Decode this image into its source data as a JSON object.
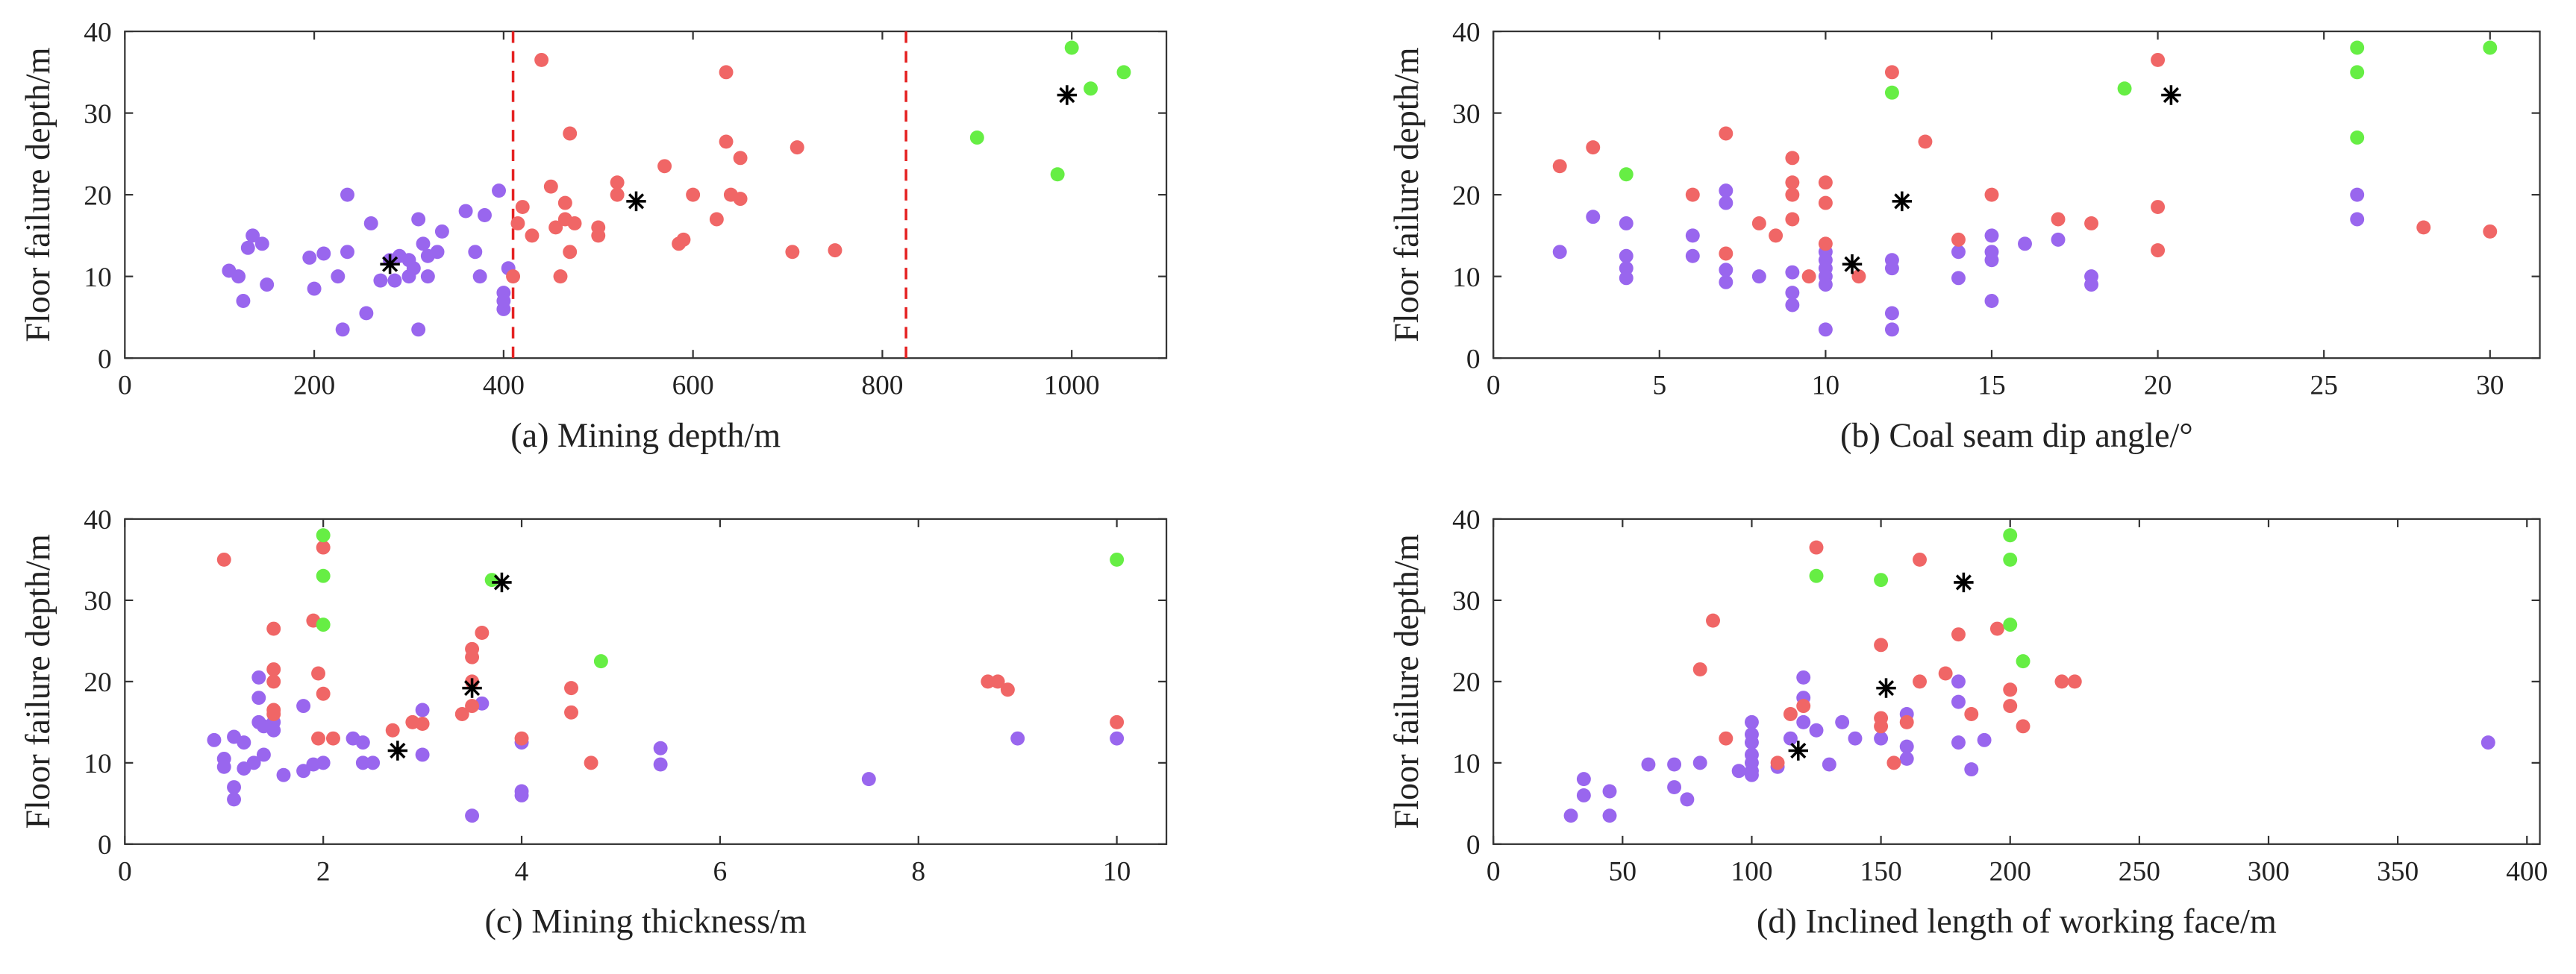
{
  "chart_data": [
    {
      "type": "scatter",
      "xlabel": "(a) Mining depth/m",
      "ylabel": "Floor failure depth/m",
      "xlim": [
        0,
        1100
      ],
      "ylim": [
        0,
        40
      ],
      "xticks": [
        0,
        200,
        400,
        600,
        800,
        1000
      ],
      "yticks": [
        0,
        10,
        20,
        30,
        40
      ],
      "vlines": [
        410,
        825
      ],
      "vline_color": "#e52222",
      "series": [
        {
          "color": "#9966ee",
          "marker": "dot",
          "x": [
            110,
            120,
            125,
            130,
            135,
            145,
            150,
            195,
            200,
            210,
            225,
            230,
            235,
            235,
            255,
            260,
            270,
            280,
            285,
            290,
            300,
            300,
            305,
            310,
            310,
            315,
            320,
            320,
            330,
            335,
            360,
            370,
            375,
            380,
            395,
            400,
            400,
            400,
            405
          ],
          "y": [
            10.7,
            10,
            7,
            13.5,
            15,
            14,
            9,
            12.3,
            8.5,
            12.8,
            10,
            3.5,
            13,
            20,
            5.5,
            16.5,
            9.5,
            12,
            9.5,
            12.5,
            12,
            10,
            11,
            17,
            3.5,
            14,
            10,
            12.5,
            13,
            15.5,
            18,
            13,
            10,
            17.5,
            20.5,
            8,
            6,
            7,
            11
          ]
        },
        {
          "color": "#f06666",
          "marker": "dot",
          "x": [
            410,
            415,
            420,
            430,
            440,
            450,
            455,
            460,
            465,
            465,
            470,
            470,
            475,
            500,
            500,
            520,
            520,
            570,
            585,
            590,
            600,
            625,
            635,
            635,
            640,
            650,
            650,
            705,
            710,
            750
          ],
          "y": [
            10,
            16.5,
            18.5,
            15,
            36.5,
            21,
            16,
            10,
            17,
            19,
            27.5,
            13,
            16.5,
            15,
            16,
            21.5,
            20,
            23.5,
            14,
            14.5,
            20,
            17,
            35,
            26.5,
            20,
            19.5,
            24.5,
            13,
            25.8,
            13.2
          ]
        },
        {
          "color": "#66ee44",
          "marker": "dot",
          "x": [
            900,
            985,
            1000,
            1020,
            1055
          ],
          "y": [
            27,
            22.5,
            38,
            33,
            35
          ]
        },
        {
          "color": "#000000",
          "marker": "asterisk",
          "x": [
            280,
            540,
            995
          ],
          "y": [
            11.5,
            19.2,
            32.2
          ]
        }
      ]
    },
    {
      "type": "scatter",
      "xlabel": "(b) Coal seam dip angle/°",
      "ylabel": "Floor failure depth/m",
      "xlim": [
        0,
        31.5
      ],
      "ylim": [
        0,
        40
      ],
      "xticks": [
        0,
        5,
        10,
        15,
        20,
        25,
        30
      ],
      "yticks": [
        0,
        10,
        20,
        30,
        40
      ],
      "series": [
        {
          "color": "#9966ee",
          "marker": "dot",
          "x": [
            2,
            3,
            4,
            4,
            4,
            4,
            6,
            6,
            7,
            7,
            7,
            7,
            8,
            9,
            9,
            9,
            10,
            10,
            10,
            10,
            10,
            10,
            12,
            12,
            12,
            12,
            14,
            14,
            15,
            15,
            15,
            15,
            16,
            17,
            18,
            18,
            26,
            26
          ],
          "y": [
            13,
            17.3,
            16.5,
            12.5,
            11,
            9.8,
            15,
            12.5,
            20.5,
            19,
            10.8,
            9.3,
            10,
            10.5,
            8,
            6.5,
            13,
            12,
            11,
            10,
            9,
            3.5,
            12,
            11,
            5.5,
            3.5,
            13,
            9.8,
            15,
            13,
            12,
            7,
            14,
            14.5,
            10,
            9,
            20,
            17
          ]
        },
        {
          "color": "#f06666",
          "marker": "dot",
          "x": [
            2,
            3,
            6,
            7,
            7,
            8,
            8.5,
            9,
            9,
            9,
            9,
            9.5,
            10,
            10,
            10,
            11,
            12,
            13,
            14,
            15,
            17,
            18,
            20,
            20,
            20,
            28,
            30
          ],
          "y": [
            23.5,
            25.8,
            20,
            27.5,
            12.8,
            16.5,
            15,
            24.5,
            21.5,
            20,
            17,
            10,
            21.5,
            19,
            14,
            10,
            35,
            26.5,
            14.5,
            20,
            17,
            16.5,
            36.5,
            18.5,
            13.2,
            16,
            15.5
          ]
        },
        {
          "color": "#66ee44",
          "marker": "dot",
          "x": [
            4,
            12,
            19,
            26,
            26,
            26,
            30
          ],
          "y": [
            22.5,
            32.5,
            33,
            38,
            35,
            27,
            38
          ]
        },
        {
          "color": "#000000",
          "marker": "asterisk",
          "x": [
            10.8,
            12.3,
            20.4
          ],
          "y": [
            11.5,
            19.2,
            32.2
          ]
        }
      ]
    },
    {
      "type": "scatter",
      "xlabel": "(c) Mining thickness/m",
      "ylabel": "Floor failure depth/m",
      "xlim": [
        0,
        10.5
      ],
      "ylim": [
        0,
        40
      ],
      "xticks": [
        0,
        2,
        4,
        6,
        8,
        10
      ],
      "yticks": [
        0,
        10,
        20,
        30,
        40
      ],
      "series": [
        {
          "color": "#9966ee",
          "marker": "dot",
          "x": [
            0.9,
            1,
            1,
            1.1,
            1.1,
            1.1,
            1.2,
            1.2,
            1.3,
            1.35,
            1.35,
            1.35,
            1.4,
            1.4,
            1.5,
            1.5,
            1.6,
            1.8,
            1.8,
            1.9,
            2.0,
            2.3,
            2.4,
            2.4,
            2.5,
            3,
            3,
            3.5,
            3.6,
            4,
            4,
            4,
            5.4,
            5.4,
            7.5,
            9,
            10
          ],
          "y": [
            12.8,
            10.5,
            9.5,
            13.2,
            7,
            5.5,
            12.5,
            9.3,
            10,
            20.5,
            18,
            15,
            14.5,
            11,
            15,
            14,
            8.5,
            17,
            9,
            9.8,
            10,
            13,
            12.5,
            10,
            10,
            16.5,
            11,
            3.5,
            17.3,
            12.5,
            6.5,
            6,
            11.8,
            9.8,
            8,
            13,
            13
          ]
        },
        {
          "color": "#f06666",
          "marker": "dot",
          "x": [
            1,
            1.5,
            1.5,
            1.5,
            1.5,
            1.5,
            1.9,
            1.95,
            2,
            2,
            1.95,
            2.1,
            2.7,
            2.9,
            3,
            3.4,
            3.5,
            3.5,
            3.5,
            3.6,
            3.5,
            4,
            4.5,
            4.5,
            4.7,
            8.7,
            8.8,
            8.9,
            10
          ],
          "y": [
            35,
            26.5,
            21.5,
            20,
            16.5,
            16,
            27.5,
            21,
            36.5,
            18.5,
            13,
            13,
            14,
            15,
            14.8,
            16,
            17,
            24,
            23,
            26,
            20,
            13,
            19.2,
            16.2,
            10,
            20,
            20,
            19,
            15
          ]
        },
        {
          "color": "#66ee44",
          "marker": "dot",
          "x": [
            2,
            2,
            2,
            3.7,
            4.8,
            10
          ],
          "y": [
            38,
            33,
            27,
            32.5,
            22.5,
            35
          ]
        },
        {
          "color": "#000000",
          "marker": "asterisk",
          "x": [
            2.75,
            3.5,
            3.8
          ],
          "y": [
            11.5,
            19.2,
            32.2
          ]
        }
      ]
    },
    {
      "type": "scatter",
      "xlabel": "(d) Inclined length of working face/m",
      "ylabel": "Floor failure depth/m",
      "xlim": [
        0,
        405
      ],
      "ylim": [
        0,
        40
      ],
      "xticks": [
        0,
        50,
        100,
        150,
        200,
        250,
        300,
        350,
        400
      ],
      "yticks": [
        0,
        10,
        20,
        30,
        40
      ],
      "series": [
        {
          "color": "#9966ee",
          "marker": "dot",
          "x": [
            30,
            35,
            35,
            45,
            45,
            60,
            70,
            70,
            75,
            80,
            95,
            100,
            100,
            100,
            100,
            100,
            100,
            100,
            110,
            115,
            120,
            120,
            120,
            125,
            130,
            135,
            140,
            150,
            160,
            160,
            160,
            180,
            180,
            180,
            185,
            190,
            385
          ],
          "y": [
            3.5,
            8,
            6,
            6.5,
            3.5,
            9.8,
            9.8,
            7,
            5.5,
            10,
            9,
            15,
            13.5,
            12.5,
            11,
            10,
            9,
            8.5,
            9.5,
            13,
            20.5,
            18,
            15,
            14,
            9.8,
            15,
            13,
            13,
            16,
            12,
            10.5,
            20,
            17.5,
            12.5,
            9.2,
            12.8,
            12.5
          ]
        },
        {
          "color": "#f06666",
          "marker": "dot",
          "x": [
            80,
            85,
            90,
            110,
            115,
            120,
            125,
            150,
            150,
            150,
            155,
            160,
            165,
            165,
            175,
            180,
            185,
            195,
            200,
            200,
            205,
            220,
            225
          ],
          "y": [
            21.5,
            27.5,
            13,
            10,
            16,
            17,
            36.5,
            24.5,
            15.5,
            14.5,
            10,
            15,
            35,
            20,
            21,
            25.8,
            16,
            26.5,
            19,
            17,
            14.5,
            20,
            20
          ]
        },
        {
          "color": "#66ee44",
          "marker": "dot",
          "x": [
            125,
            150,
            200,
            200,
            200,
            205
          ],
          "y": [
            33,
            32.5,
            38,
            35,
            27,
            22.5
          ]
        },
        {
          "color": "#000000",
          "marker": "asterisk",
          "x": [
            118,
            152,
            182
          ],
          "y": [
            11.5,
            19.2,
            32.2
          ]
        }
      ]
    }
  ]
}
